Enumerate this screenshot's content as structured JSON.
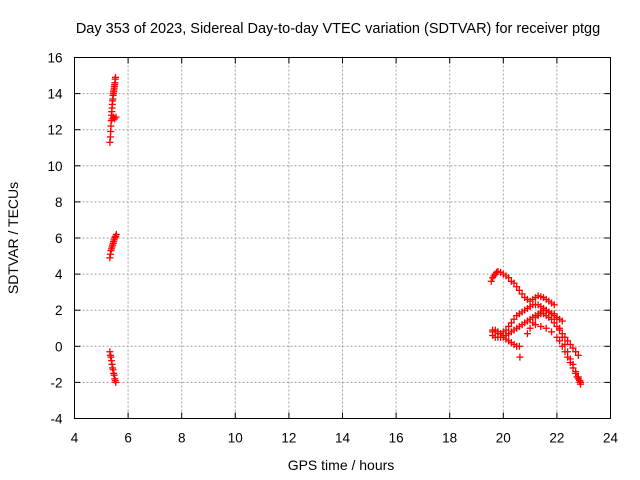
{
  "chart_data": {
    "type": "scatter",
    "title": "Day 353 of 2023, Sidereal Day-to-day VTEC variation (SDTVAR) for receiver ptgg",
    "xlabel": "GPS time / hours",
    "ylabel": "SDTVAR / TECUs",
    "xlim": [
      4,
      24
    ],
    "ylim": [
      -4,
      16
    ],
    "xticks": [
      "4",
      "6",
      "8",
      "10",
      "12",
      "14",
      "16",
      "18",
      "20",
      "22",
      "24"
    ],
    "yticks": [
      "-4",
      "-2",
      "0",
      "2",
      "4",
      "6",
      "8",
      "10",
      "12",
      "14",
      "16"
    ],
    "grid": true,
    "marker": "plus",
    "color": "#ff0000",
    "series": [
      {
        "x": [
          5.32,
          5.34,
          5.35,
          5.36,
          5.37,
          5.38,
          5.39,
          5.4,
          5.41,
          5.42,
          5.43,
          5.44,
          5.45,
          5.46,
          5.47,
          5.48,
          5.49,
          5.5,
          5.51,
          5.52,
          5.53,
          5.4,
          5.45,
          5.5,
          5.55,
          5.32,
          5.34,
          5.36,
          5.38,
          5.4,
          5.42,
          5.44,
          5.46,
          5.48,
          5.5,
          5.52,
          5.54,
          5.56,
          5.32,
          5.34,
          5.36,
          5.38,
          5.4,
          5.42,
          5.44,
          5.46,
          5.48,
          5.5,
          5.52,
          5.54,
          19.55,
          19.6,
          19.65,
          19.7,
          19.75,
          19.8,
          19.9,
          20.0,
          20.1,
          20.2,
          20.3,
          20.4,
          20.5,
          20.6,
          20.7,
          20.8,
          20.9,
          21.0,
          21.1,
          21.2,
          21.3,
          21.4,
          21.5,
          21.6,
          21.7,
          21.8,
          21.9,
          19.6,
          19.7,
          19.8,
          19.9,
          20.0,
          20.1,
          20.2,
          20.3,
          20.4,
          20.5,
          20.6,
          20.7,
          20.8,
          20.9,
          21.0,
          21.1,
          21.2,
          21.3,
          21.4,
          21.5,
          21.6,
          21.7,
          21.8,
          21.9,
          22.0,
          22.1,
          22.2,
          19.6,
          19.7,
          19.8,
          19.9,
          20.0,
          20.1,
          20.2,
          20.3,
          20.4,
          20.5,
          20.6,
          20.7,
          20.8,
          20.9,
          21.0,
          21.1,
          21.2,
          21.3,
          21.4,
          21.5,
          21.6,
          21.7,
          21.8,
          19.6,
          19.7,
          19.8,
          19.9,
          20.0,
          20.1,
          20.2,
          20.3,
          20.4,
          20.5,
          20.6,
          20.62,
          20.9,
          21.0,
          21.1,
          21.2,
          21.3,
          21.4,
          21.5,
          21.6,
          21.7,
          21.8,
          21.9,
          22.0,
          22.1,
          22.2,
          22.3,
          22.4,
          22.5,
          22.6,
          22.7,
          22.8,
          21.2,
          21.4,
          21.6,
          21.8,
          22.0,
          22.1,
          22.2,
          22.3,
          22.4,
          22.5,
          22.6,
          22.7,
          22.75,
          22.8,
          22.85,
          22.87,
          22.88,
          21.5,
          21.7,
          21.9,
          22.0,
          22.1,
          22.2,
          22.3,
          22.4,
          22.5,
          22.6,
          22.7,
          22.8,
          22.85,
          22.88
        ],
        "y": [
          11.3,
          11.6,
          11.9,
          12.2,
          12.5,
          12.8,
          13.0,
          13.2,
          13.4,
          13.6,
          13.7,
          13.9,
          14.0,
          14.1,
          14.2,
          14.3,
          14.4,
          14.5,
          14.6,
          14.8,
          14.9,
          12.6,
          12.7,
          12.6,
          12.7,
          4.9,
          5.1,
          5.3,
          5.4,
          5.5,
          5.6,
          5.7,
          5.8,
          5.9,
          6.0,
          6.05,
          6.1,
          6.2,
          -0.3,
          -0.5,
          -0.6,
          -0.8,
          -1.0,
          -1.2,
          -1.3,
          -1.5,
          -1.6,
          -1.8,
          -1.9,
          -2.0,
          3.6,
          3.8,
          3.9,
          4.0,
          4.1,
          4.15,
          4.1,
          4.0,
          3.9,
          3.8,
          3.6,
          3.5,
          3.3,
          3.1,
          2.9,
          2.7,
          2.6,
          2.5,
          2.6,
          2.7,
          2.8,
          2.75,
          2.7,
          2.6,
          2.5,
          2.4,
          2.3,
          0.9,
          0.8,
          0.7,
          0.7,
          0.8,
          0.9,
          1.1,
          1.3,
          1.5,
          1.7,
          1.8,
          1.9,
          2.0,
          2.1,
          2.2,
          2.3,
          2.3,
          2.3,
          2.2,
          2.1,
          2.0,
          1.9,
          1.8,
          1.7,
          1.6,
          1.5,
          1.4,
          0.6,
          0.5,
          0.5,
          0.5,
          0.5,
          0.6,
          0.7,
          0.8,
          0.9,
          1.0,
          1.1,
          1.2,
          1.3,
          1.4,
          1.5,
          1.6,
          1.7,
          1.8,
          1.9,
          2.0,
          2.0,
          1.9,
          1.8,
          0.8,
          0.9,
          0.8,
          0.7,
          0.6,
          0.4,
          0.3,
          0.2,
          0.1,
          0.0,
          0.0,
          -0.6,
          0.7,
          1.0,
          1.3,
          1.6,
          1.7,
          1.8,
          1.8,
          1.7,
          1.6,
          1.5,
          1.3,
          1.1,
          0.9,
          0.7,
          0.5,
          0.3,
          0.1,
          -0.1,
          -0.3,
          -0.5,
          1.2,
          1.1,
          1.0,
          0.8,
          0.5,
          0.3,
          0.0,
          -0.3,
          -0.6,
          -0.9,
          -1.2,
          -1.5,
          -1.7,
          -1.8,
          -1.9,
          -2.0,
          -2.1,
          2.0,
          1.9,
          1.8,
          1.5,
          1.0,
          0.5,
          0.1,
          -0.3,
          -0.7,
          -1.0,
          -1.4,
          -1.7,
          -1.9,
          -2.0
        ]
      }
    ]
  }
}
